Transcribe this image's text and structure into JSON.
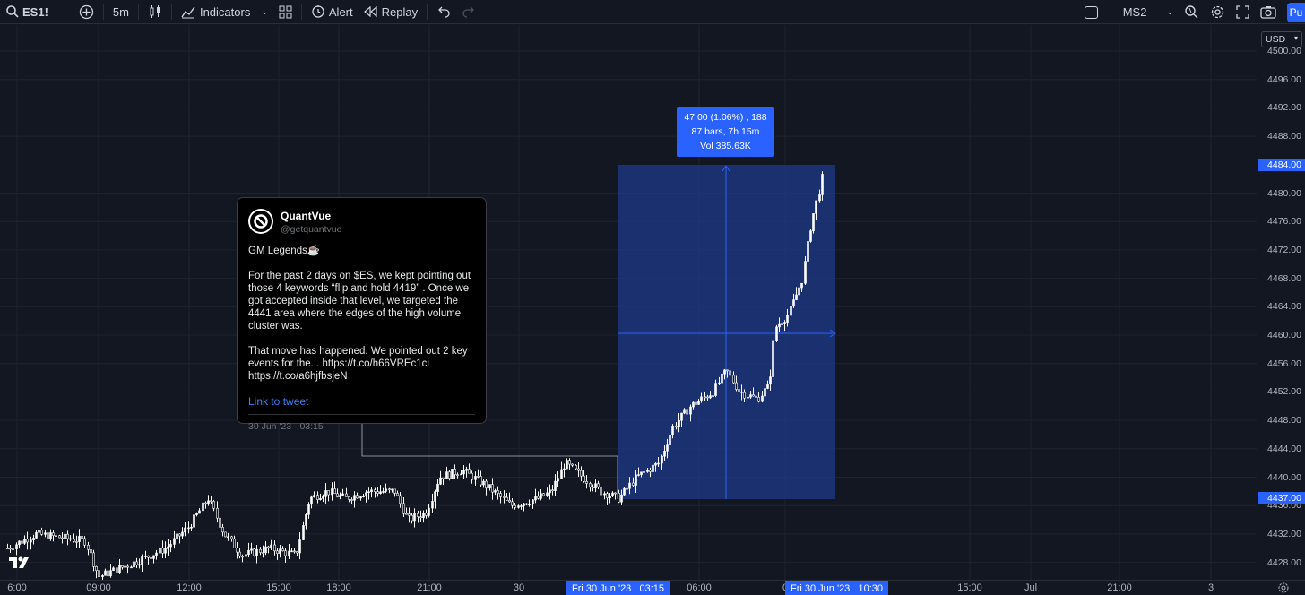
{
  "toolbar": {
    "symbol": "ES1!",
    "interval": "5m",
    "indicators_label": "Indicators",
    "alert_label": "Alert",
    "replay_label": "Replay",
    "layout_name": "MS2",
    "publish_label": "Pu"
  },
  "price_axis": {
    "currency": "USD",
    "ticks": [
      "4500.00",
      "4496.00",
      "4492.00",
      "4488.00",
      "4480.00",
      "4476.00",
      "4472.00",
      "4468.00",
      "4464.00",
      "4460.00",
      "4456.00",
      "4452.00",
      "4448.00",
      "4444.00",
      "4440.00",
      "4436.00",
      "4432.00",
      "4428.00"
    ],
    "tag_high": "4484.00",
    "tag_low": "4437.00"
  },
  "time_axis": {
    "ticks": [
      "6:00",
      "09:00",
      "12:00",
      "15:00",
      "18:00",
      "21:00",
      "30",
      "06:00",
      "0",
      "15:00",
      "Jul",
      "21:00",
      "3"
    ],
    "tag_start": "Fri 30 Jun '23   03:15",
    "tag_end": "Fri 30 Jun '23   10:30"
  },
  "measure": {
    "line1": "47.00 (1.06%) , 188",
    "line2": "87 bars, 7h 15m",
    "line3": "Vol 385.63K"
  },
  "tweet": {
    "name": "QuantVue",
    "handle": "@getquantvue",
    "body": "GM Legends☕\n\nFor the past 2 days on $ES, we kept pointing out those 4 keywords “flip and hold 4419” . Once we got accepted inside that level, we targeted the 4441 area where the edges of the high volume cluster was.\n\nThat move has happened. We pointed out 2 key events for the... https://t.co/h66VREc1ci https://t.co/a6hjfbsjeN",
    "link_label": "Link to tweet",
    "date": "30 Jun '23 · 03:15"
  },
  "colors": {
    "background": "#131722",
    "accent": "#2962ff",
    "candle": "#ffffff",
    "measure_fill": "#1e3a8a"
  },
  "icons": [
    "search-icon",
    "plus-circle-icon",
    "candles-icon",
    "indicators-icon",
    "layouts-grid-icon",
    "alert-icon",
    "replay-icon",
    "undo-icon",
    "redo-icon",
    "fullscreen-icon",
    "settings-icon",
    "camera-icon",
    "magnify-icon"
  ]
}
